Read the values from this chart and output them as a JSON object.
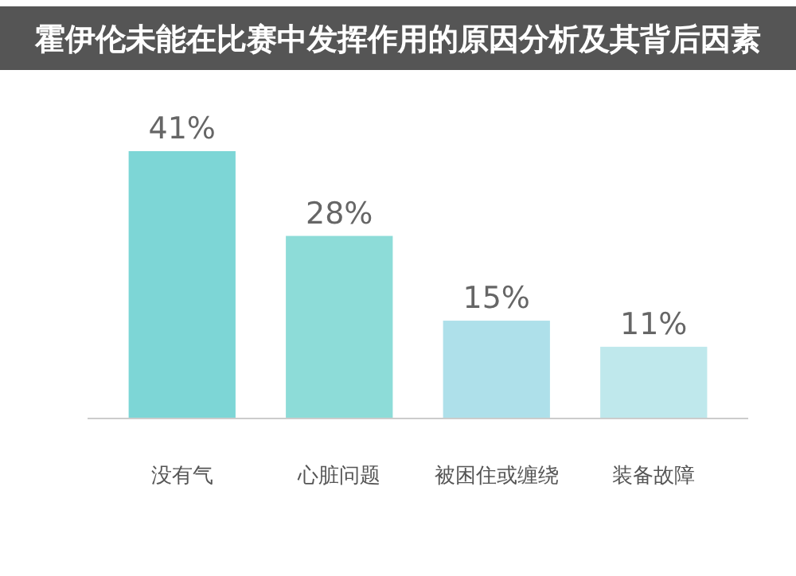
{
  "chart_data": {
    "type": "bar",
    "title": "霍伊伦未能在比赛中发挥作用的原因分析及其背后因素",
    "categories": [
      "没有气",
      "心脏问题",
      "被困住或缠绕",
      "装备故障"
    ],
    "values": [
      41,
      28,
      15,
      11
    ],
    "colors": [
      "#7dd6d6",
      "#8ddcd8",
      "#aee0ea",
      "#bfe8ec"
    ],
    "value_labels": [
      "41%",
      "28%",
      "15%",
      "11%"
    ]
  }
}
